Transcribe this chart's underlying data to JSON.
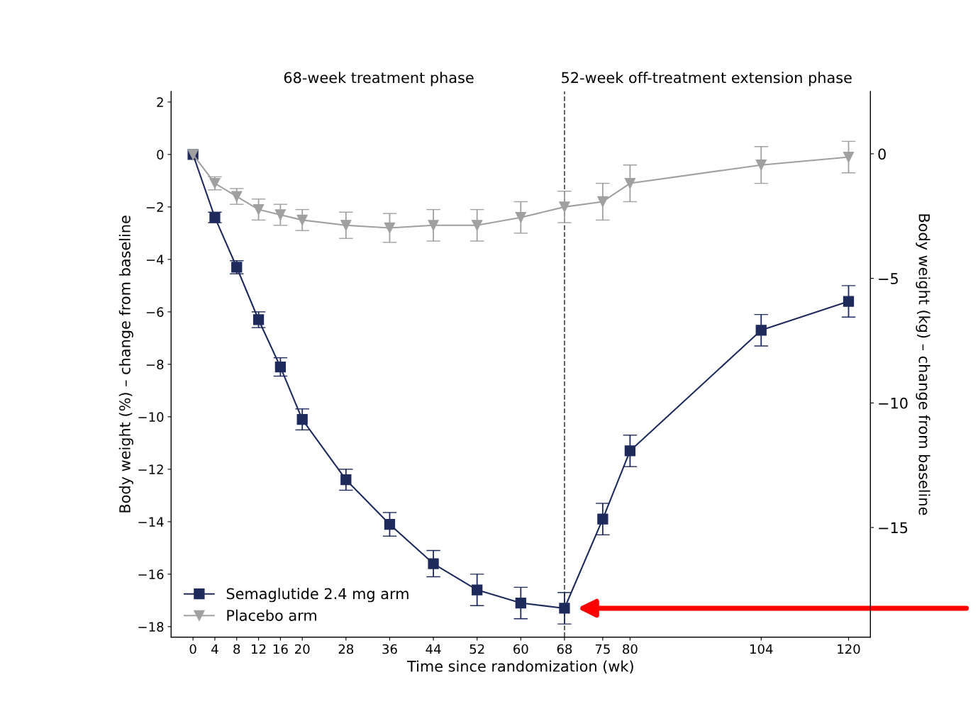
{
  "chart_data": {
    "type": "line",
    "xlabel": "Time since randomization (wk)",
    "ylabel": "Body weight (%) – change from baseline",
    "y2label": "Body weight (kg) – change from baseline",
    "x": [
      0,
      4,
      8,
      12,
      16,
      20,
      28,
      36,
      44,
      52,
      60,
      68,
      75,
      80,
      104,
      120
    ],
    "series": [
      {
        "name": "Semaglutide 2.4 mg arm",
        "color": "#1f2a5c",
        "marker": "square",
        "values": [
          0,
          -2.4,
          -4.3,
          -6.3,
          -8.1,
          -10.1,
          -12.4,
          -14.1,
          -15.6,
          -16.6,
          -17.1,
          -17.3,
          -13.9,
          -11.3,
          -6.7,
          -5.6
        ],
        "errors": [
          null,
          0.2,
          0.25,
          0.3,
          0.35,
          0.4,
          0.4,
          0.45,
          0.5,
          0.6,
          0.6,
          0.6,
          0.6,
          0.6,
          0.6,
          0.6
        ]
      },
      {
        "name": "Placebo arm",
        "color": "#a0a0a0",
        "marker": "triangle",
        "values": [
          0,
          -1.1,
          -1.6,
          -2.1,
          -2.3,
          -2.5,
          -2.7,
          -2.8,
          -2.7,
          -2.7,
          -2.4,
          -2.0,
          -1.8,
          -1.1,
          -0.4,
          -0.1
        ],
        "errors": [
          null,
          0.25,
          0.3,
          0.4,
          0.4,
          0.4,
          0.5,
          0.55,
          0.6,
          0.6,
          0.6,
          0.6,
          0.7,
          0.7,
          0.7,
          0.6
        ]
      }
    ],
    "xlim": [
      -4,
      124
    ],
    "xticks": [
      0,
      4,
      8,
      12,
      16,
      20,
      28,
      36,
      44,
      52,
      60,
      68,
      75,
      80,
      104,
      120
    ],
    "ylim": [
      -18.4,
      2.4
    ],
    "yticks": [
      2,
      0,
      -2,
      -4,
      -6,
      -8,
      -10,
      -12,
      -14,
      -16,
      -18
    ],
    "y2lim": [
      -19.4,
      2.5
    ],
    "y2ticks": [
      0,
      -5,
      -10,
      -15
    ],
    "ref_lines": [
      {
        "axis": "x",
        "value": 68,
        "color": "#555555",
        "line_style": "dashed"
      }
    ],
    "annotations": [
      "68-week treatment phase",
      "52-week off-treatment extension phase"
    ],
    "legend": "bottom left",
    "grid": false,
    "line_style": "solid"
  }
}
